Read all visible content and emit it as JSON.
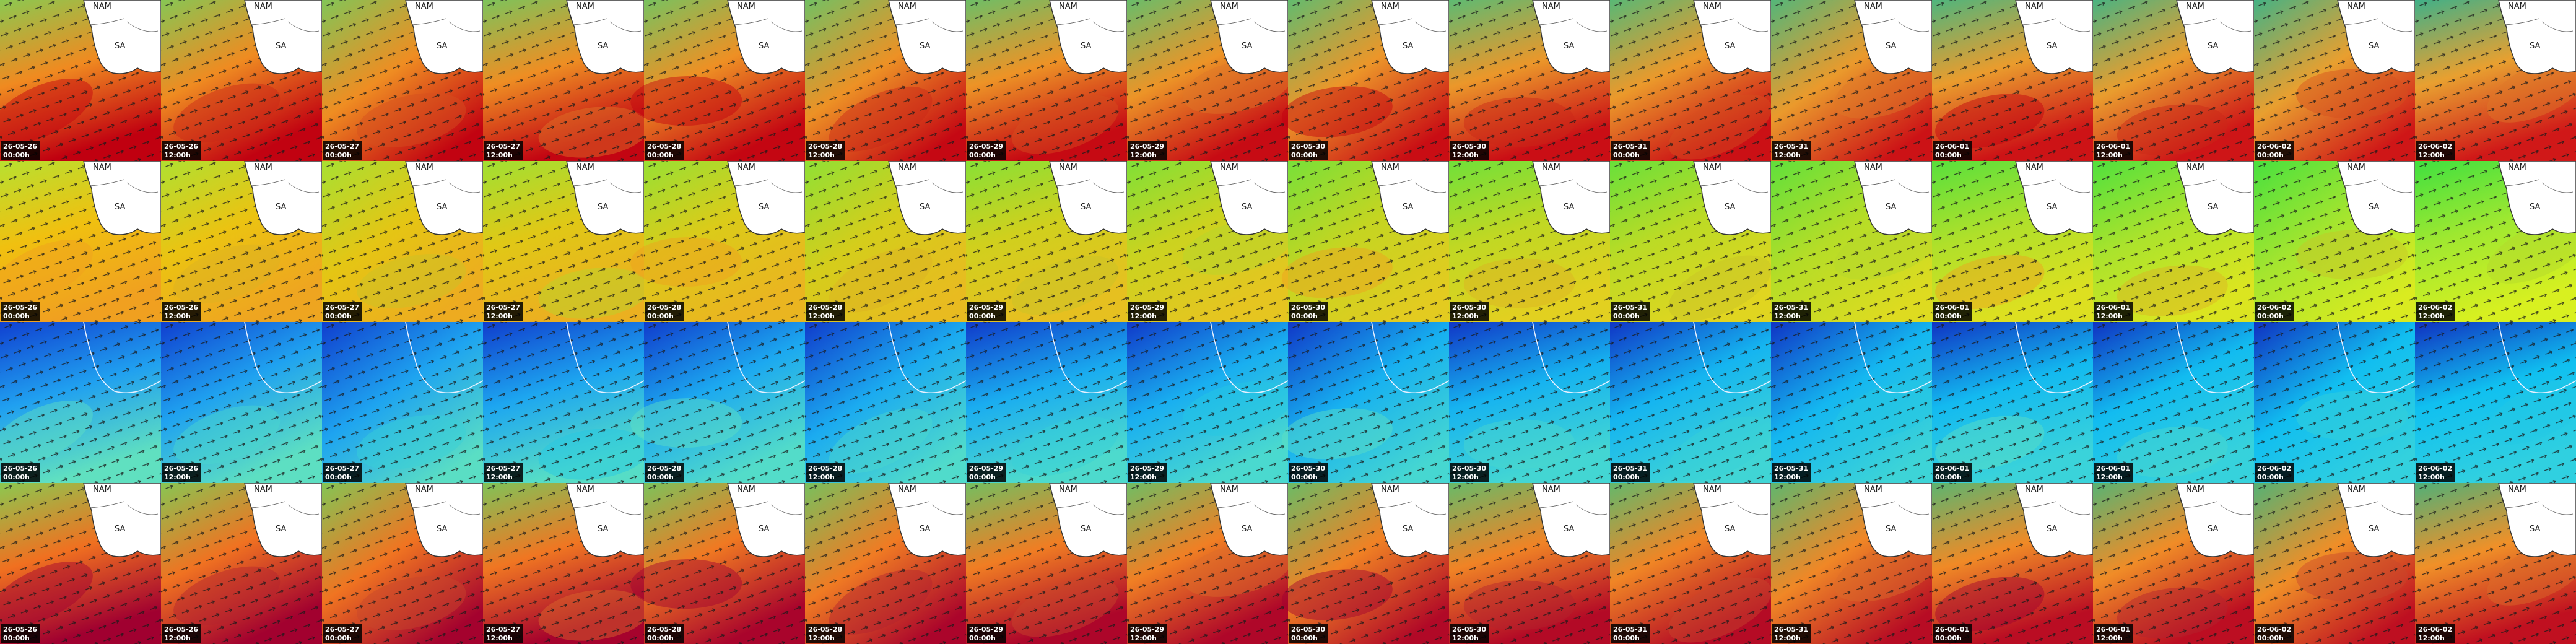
{
  "map_labels": {
    "north": "NAM",
    "south": "SA"
  },
  "columns": [
    {
      "date": "26-05-26",
      "time": "00:00h"
    },
    {
      "date": "26-05-26",
      "time": "12:00h"
    },
    {
      "date": "26-05-27",
      "time": "00:00h"
    },
    {
      "date": "26-05-27",
      "time": "12:00h"
    },
    {
      "date": "26-05-28",
      "time": "00:00h"
    },
    {
      "date": "26-05-28",
      "time": "12:00h"
    },
    {
      "date": "26-05-29",
      "time": "00:00h"
    },
    {
      "date": "26-05-29",
      "time": "12:00h"
    },
    {
      "date": "26-05-30",
      "time": "00:00h"
    },
    {
      "date": "26-05-30",
      "time": "12:00h"
    },
    {
      "date": "26-05-31",
      "time": "00:00h"
    },
    {
      "date": "26-05-31",
      "time": "12:00h"
    },
    {
      "date": "26-06-01",
      "time": "00:00h"
    },
    {
      "date": "26-06-01",
      "time": "12:00h"
    },
    {
      "date": "26-06-02",
      "time": "00:00h"
    },
    {
      "date": "26-06-02",
      "time": "12:00h"
    }
  ]
}
